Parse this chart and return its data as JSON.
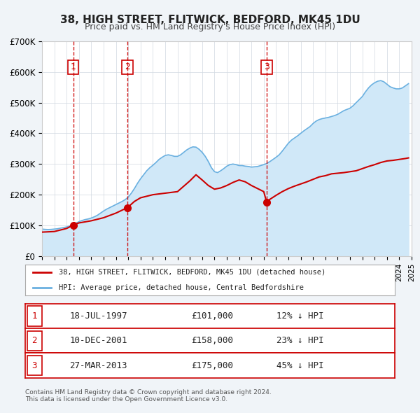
{
  "title": "38, HIGH STREET, FLITWICK, BEDFORD, MK45 1DU",
  "subtitle": "Price paid vs. HM Land Registry's House Price Index (HPI)",
  "background_color": "#f0f4f8",
  "plot_background": "#ffffff",
  "ylabel": "",
  "xlabel": "",
  "ylim": [
    0,
    700000
  ],
  "yticks": [
    0,
    100000,
    200000,
    300000,
    400000,
    500000,
    600000,
    700000
  ],
  "ytick_labels": [
    "£0",
    "£100K",
    "£200K",
    "£300K",
    "£400K",
    "£500K",
    "£600K",
    "£700K"
  ],
  "x_start_year": 1995,
  "x_end_year": 2025,
  "sale_color": "#cc0000",
  "hpi_color": "#6ab0e0",
  "hpi_fill_color": "#d0e8f8",
  "sale_points": [
    {
      "year": 1997.54,
      "value": 101000,
      "label": "1"
    },
    {
      "year": 2001.94,
      "value": 158000,
      "label": "2"
    },
    {
      "year": 2013.24,
      "value": 175000,
      "label": "3"
    }
  ],
  "vline_color": "#cc0000",
  "vline_style": "dashed",
  "legend_sale_label": "38, HIGH STREET, FLITWICK, BEDFORD, MK45 1DU (detached house)",
  "legend_hpi_label": "HPI: Average price, detached house, Central Bedfordshire",
  "table_rows": [
    {
      "num": "1",
      "date": "18-JUL-1997",
      "price": "£101,000",
      "pct": "12% ↓ HPI"
    },
    {
      "num": "2",
      "date": "10-DEC-2001",
      "price": "£158,000",
      "pct": "23% ↓ HPI"
    },
    {
      "num": "3",
      "date": "27-MAR-2013",
      "price": "£175,000",
      "pct": "45% ↓ HPI"
    }
  ],
  "footer": "Contains HM Land Registry data © Crown copyright and database right 2024.\nThis data is licensed under the Open Government Licence v3.0.",
  "hpi_data": {
    "years": [
      1995.0,
      1995.25,
      1995.5,
      1995.75,
      1996.0,
      1996.25,
      1996.5,
      1996.75,
      1997.0,
      1997.25,
      1997.5,
      1997.75,
      1998.0,
      1998.25,
      1998.5,
      1998.75,
      1999.0,
      1999.25,
      1999.5,
      1999.75,
      2000.0,
      2000.25,
      2000.5,
      2000.75,
      2001.0,
      2001.25,
      2001.5,
      2001.75,
      2002.0,
      2002.25,
      2002.5,
      2002.75,
      2003.0,
      2003.25,
      2003.5,
      2003.75,
      2004.0,
      2004.25,
      2004.5,
      2004.75,
      2005.0,
      2005.25,
      2005.5,
      2005.75,
      2006.0,
      2006.25,
      2006.5,
      2006.75,
      2007.0,
      2007.25,
      2007.5,
      2007.75,
      2008.0,
      2008.25,
      2008.5,
      2008.75,
      2009.0,
      2009.25,
      2009.5,
      2009.75,
      2010.0,
      2010.25,
      2010.5,
      2010.75,
      2011.0,
      2011.25,
      2011.5,
      2011.75,
      2012.0,
      2012.25,
      2012.5,
      2012.75,
      2013.0,
      2013.25,
      2013.5,
      2013.75,
      2014.0,
      2014.25,
      2014.5,
      2014.75,
      2015.0,
      2015.25,
      2015.5,
      2015.75,
      2016.0,
      2016.25,
      2016.5,
      2016.75,
      2017.0,
      2017.25,
      2017.5,
      2017.75,
      2018.0,
      2018.25,
      2018.5,
      2018.75,
      2019.0,
      2019.25,
      2019.5,
      2019.75,
      2020.0,
      2020.25,
      2020.5,
      2020.75,
      2021.0,
      2021.25,
      2021.5,
      2021.75,
      2022.0,
      2022.25,
      2022.5,
      2022.75,
      2023.0,
      2023.25,
      2023.5,
      2023.75,
      2024.0,
      2024.25,
      2024.5,
      2024.75
    ],
    "values": [
      88000,
      87000,
      86500,
      87000,
      88000,
      89000,
      91000,
      93000,
      95000,
      98000,
      102000,
      107000,
      112000,
      116000,
      119000,
      121000,
      124000,
      128000,
      133000,
      140000,
      147000,
      153000,
      158000,
      163000,
      168000,
      173000,
      178000,
      184000,
      192000,
      205000,
      220000,
      237000,
      252000,
      265000,
      278000,
      288000,
      296000,
      305000,
      315000,
      322000,
      328000,
      330000,
      328000,
      325000,
      325000,
      330000,
      338000,
      346000,
      352000,
      356000,
      355000,
      348000,
      338000,
      325000,
      308000,
      288000,
      275000,
      272000,
      278000,
      285000,
      293000,
      298000,
      300000,
      298000,
      295000,
      295000,
      293000,
      292000,
      290000,
      291000,
      292000,
      295000,
      298000,
      302000,
      308000,
      315000,
      322000,
      330000,
      342000,
      355000,
      368000,
      378000,
      385000,
      392000,
      400000,
      408000,
      415000,
      422000,
      432000,
      440000,
      445000,
      448000,
      450000,
      452000,
      455000,
      458000,
      462000,
      468000,
      474000,
      478000,
      482000,
      490000,
      500000,
      510000,
      520000,
      535000,
      548000,
      558000,
      565000,
      570000,
      572000,
      568000,
      560000,
      552000,
      548000,
      545000,
      545000,
      548000,
      555000,
      562000
    ]
  },
  "sale_line_data": {
    "years": [
      1995.0,
      1996.0,
      1997.0,
      1997.54,
      1998.0,
      1999.0,
      2000.0,
      2001.0,
      2001.94,
      2002.5,
      2003.0,
      2004.0,
      2005.0,
      2006.0,
      2007.0,
      2007.5,
      2008.0,
      2008.5,
      2009.0,
      2009.5,
      2010.0,
      2010.5,
      2011.0,
      2011.5,
      2012.0,
      2012.5,
      2013.0,
      2013.24,
      2013.5,
      2014.0,
      2014.5,
      2015.0,
      2015.5,
      2016.0,
      2016.5,
      2017.0,
      2017.5,
      2018.0,
      2018.5,
      2019.0,
      2019.5,
      2020.0,
      2020.5,
      2021.0,
      2021.5,
      2022.0,
      2022.5,
      2023.0,
      2023.5,
      2024.0,
      2024.5,
      2024.75
    ],
    "values": [
      78000,
      80000,
      90000,
      101000,
      108000,
      115000,
      125000,
      140000,
      158000,
      178000,
      190000,
      200000,
      205000,
      210000,
      245000,
      265000,
      248000,
      230000,
      218000,
      222000,
      230000,
      240000,
      248000,
      242000,
      230000,
      220000,
      210000,
      175000,
      185000,
      198000,
      210000,
      220000,
      228000,
      235000,
      242000,
      250000,
      258000,
      262000,
      268000,
      270000,
      272000,
      275000,
      278000,
      285000,
      292000,
      298000,
      305000,
      310000,
      312000,
      315000,
      318000,
      320000
    ]
  }
}
